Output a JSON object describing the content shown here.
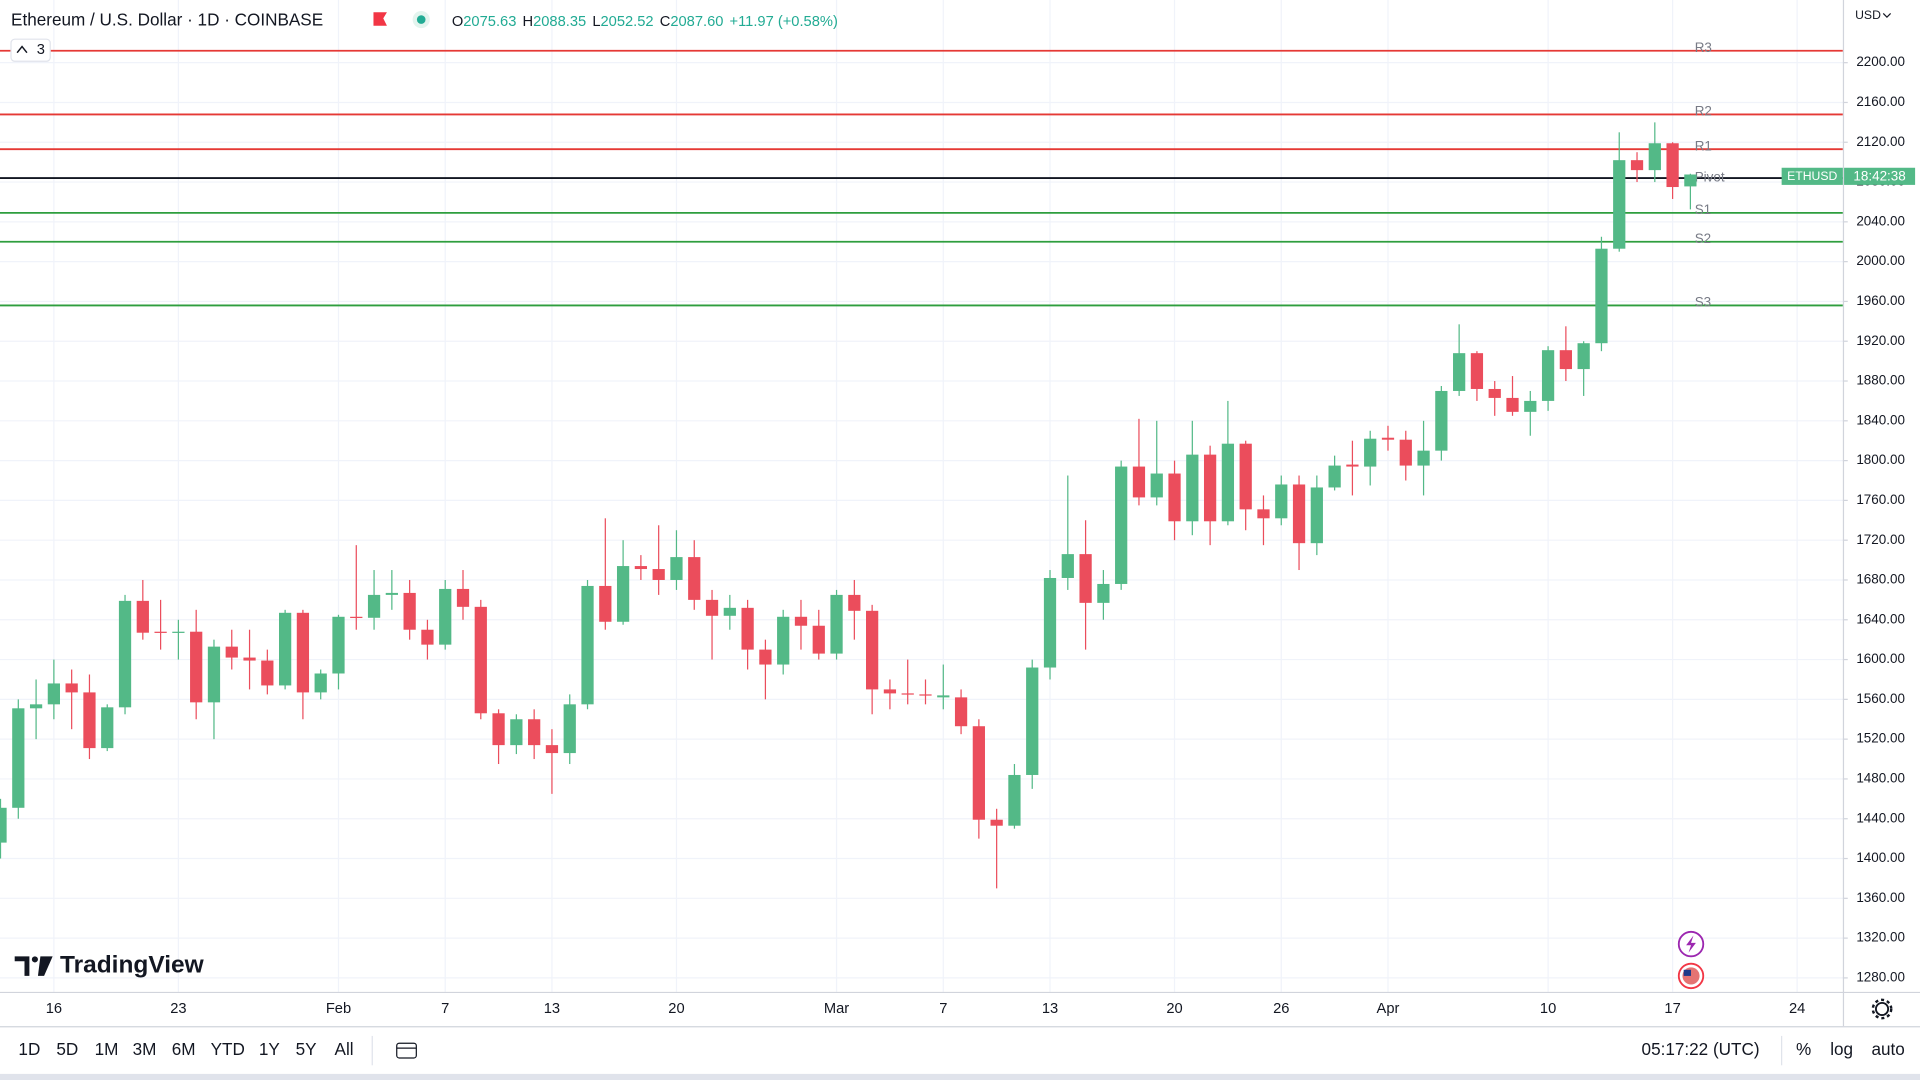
{
  "header": {
    "symbol": "Ethereum / U.S. Dollar · 1D · COINBASE",
    "ohlc": [
      {
        "label": "O",
        "value": "2075.63"
      },
      {
        "label": "H",
        "value": "2088.35"
      },
      {
        "label": "L",
        "value": "2052.52"
      },
      {
        "label": "C",
        "value": "2087.60"
      }
    ],
    "change": "+11.97 (+0.58%)",
    "indicators": "3"
  },
  "chart_data": {
    "type": "candlestick",
    "categories": [
      null,
      null,
      null,
      "16",
      null,
      null,
      null,
      null,
      null,
      null,
      "23",
      null,
      null,
      null,
      null,
      null,
      null,
      null,
      null,
      "Feb",
      null,
      null,
      null,
      null,
      null,
      "7",
      null,
      null,
      null,
      null,
      null,
      "13",
      null,
      null,
      null,
      null,
      null,
      null,
      "20",
      null,
      null,
      null,
      null,
      null,
      null,
      null,
      null,
      "Mar",
      null,
      null,
      null,
      null,
      null,
      "7",
      null,
      null,
      null,
      null,
      null,
      "13",
      null,
      null,
      null,
      null,
      null,
      null,
      "20",
      null,
      null,
      null,
      null,
      null,
      "26",
      null,
      null,
      null,
      null,
      null,
      "Apr",
      null,
      null,
      null,
      null,
      null,
      null,
      null,
      null,
      "10",
      null,
      null,
      null,
      null,
      null,
      null,
      "17",
      null,
      null,
      null,
      null,
      null,
      null,
      "24"
    ],
    "open": [
      1416,
      1451,
      1551,
      1555,
      1576,
      1567,
      1511,
      1552,
      1659,
      1628,
      1627,
      1628,
      1557,
      1613,
      1602,
      1599,
      1574,
      1647,
      1567,
      1586,
      1643,
      1642,
      1665,
      1667,
      1630,
      1615,
      1671,
      1653,
      1546,
      1514,
      1540,
      1514,
      1506,
      1555,
      1674,
      1638,
      1694,
      1691,
      1680,
      1703,
      1660,
      1644,
      1652,
      1610,
      1595,
      1643,
      1634,
      1606,
      1665,
      1649,
      1570,
      1566,
      1565,
      1562,
      1562,
      1533,
      1439,
      1433,
      1484,
      1592,
      1682,
      1706,
      1657,
      1676,
      1794,
      1763,
      1787,
      1739,
      1806,
      1739,
      1817,
      1751,
      1742,
      1776,
      1717,
      1773,
      1796,
      1794,
      1823,
      1821,
      1795,
      1810,
      1870,
      1908,
      1872,
      1863,
      1849,
      1860,
      1911,
      1892,
      1918,
      2013,
      2102,
      2092,
      2119,
      2075.63,
      null,
      null,
      null,
      null,
      null,
      null
    ],
    "high": [
      1460,
      1560,
      1580,
      1600,
      1590,
      1585,
      1555,
      1665,
      1680,
      1660,
      1640,
      1650,
      1620,
      1630,
      1630,
      1610,
      1650,
      1650,
      1590,
      1645,
      1715,
      1690,
      1690,
      1680,
      1640,
      1680,
      1690,
      1660,
      1550,
      1545,
      1550,
      1530,
      1565,
      1680,
      1742,
      1720,
      1705,
      1735,
      1730,
      1720,
      1670,
      1665,
      1660,
      1620,
      1650,
      1660,
      1650,
      1670,
      1680,
      1655,
      1580,
      1600,
      1580,
      1595,
      1570,
      1540,
      1450,
      1495,
      1600,
      1690,
      1785,
      1740,
      1690,
      1800,
      1842,
      1840,
      1800,
      1840,
      1815,
      1860,
      1820,
      1765,
      1785,
      1785,
      1785,
      1805,
      1820,
      1830,
      1835,
      1830,
      1840,
      1875,
      1937,
      1910,
      1880,
      1885,
      1870,
      1915,
      1935,
      1920,
      2025,
      2130,
      2110,
      2140,
      2120,
      2088.35,
      null,
      null,
      null,
      null,
      null,
      null
    ],
    "low": [
      1400,
      1440,
      1520,
      1540,
      1530,
      1500,
      1508,
      1545,
      1620,
      1610,
      1600,
      1540,
      1520,
      1590,
      1570,
      1565,
      1570,
      1540,
      1560,
      1570,
      1630,
      1630,
      1650,
      1620,
      1600,
      1610,
      1640,
      1540,
      1495,
      1505,
      1500,
      1465,
      1495,
      1550,
      1630,
      1635,
      1680,
      1665,
      1670,
      1650,
      1600,
      1630,
      1590,
      1560,
      1585,
      1610,
      1600,
      1600,
      1620,
      1545,
      1550,
      1555,
      1555,
      1550,
      1525,
      1420,
      1370,
      1430,
      1470,
      1580,
      1670,
      1610,
      1640,
      1670,
      1755,
      1755,
      1720,
      1725,
      1715,
      1735,
      1730,
      1715,
      1735,
      1690,
      1705,
      1770,
      1765,
      1775,
      1810,
      1780,
      1765,
      1800,
      1865,
      1860,
      1845,
      1845,
      1825,
      1850,
      1880,
      1865,
      1910,
      2010,
      2080,
      2080,
      2063,
      2052.52,
      null,
      null,
      null,
      null,
      null,
      null
    ],
    "close": [
      1451,
      1551,
      1555,
      1576,
      1567,
      1511,
      1552,
      1659,
      1627,
      1627,
      1628,
      1557,
      1613,
      1602,
      1599,
      1574,
      1647,
      1567,
      1586,
      1643,
      1642,
      1665,
      1667,
      1630,
      1615,
      1671,
      1653,
      1546,
      1514,
      1540,
      1514,
      1506,
      1555,
      1674,
      1638,
      1694,
      1691,
      1680,
      1703,
      1660,
      1644,
      1652,
      1610,
      1595,
      1643,
      1634,
      1606,
      1665,
      1649,
      1570,
      1566,
      1565,
      1564,
      1564,
      1533,
      1439,
      1433,
      1484,
      1592,
      1682,
      1706,
      1657,
      1676,
      1794,
      1763,
      1787,
      1739,
      1806,
      1739,
      1817,
      1751,
      1742,
      1776,
      1717,
      1773,
      1795,
      1794,
      1822,
      1821,
      1795,
      1810,
      1870,
      1908,
      1872,
      1863,
      1849,
      1860,
      1911,
      1892,
      1918,
      2013,
      2102,
      2092,
      2119,
      2075,
      2087.6,
      null,
      null,
      null,
      null,
      null,
      null
    ],
    "up_color": "#53b987",
    "down_color": "#eb4d5c",
    "ylim": [
      1266,
      2263
    ],
    "yticks": [
      {
        "value": 1280,
        "label": "1280.00"
      },
      {
        "value": 1320,
        "label": "1320.00"
      },
      {
        "value": 1360,
        "label": "1360.00"
      },
      {
        "value": 1400,
        "label": "1400.00"
      },
      {
        "value": 1440,
        "label": "1440.00"
      },
      {
        "value": 1480,
        "label": "1480.00"
      },
      {
        "value": 1520,
        "label": "1520.00"
      },
      {
        "value": 1560,
        "label": "1560.00"
      },
      {
        "value": 1600,
        "label": "1600.00"
      },
      {
        "value": 1640,
        "label": "1640.00"
      },
      {
        "value": 1680,
        "label": "1680.00"
      },
      {
        "value": 1720,
        "label": "1720.00"
      },
      {
        "value": 1760,
        "label": "1760.00"
      },
      {
        "value": 1800,
        "label": "1800.00"
      },
      {
        "value": 1840,
        "label": "1840.00"
      },
      {
        "value": 1880,
        "label": "1880.00"
      },
      {
        "value": 1920,
        "label": "1920.00"
      },
      {
        "value": 1960,
        "label": "1960.00"
      },
      {
        "value": 2000,
        "label": "2000.00"
      },
      {
        "value": 2040,
        "label": "2040.00"
      },
      {
        "value": 2080,
        "label": "2080.00"
      },
      {
        "value": 2120,
        "label": "2120.00"
      },
      {
        "value": 2160,
        "label": "2160.00"
      },
      {
        "value": 2200,
        "label": "2200.00"
      }
    ],
    "grid": true,
    "pivots": [
      {
        "label": "R3",
        "value": 2212,
        "color": "#e53935"
      },
      {
        "label": "R2",
        "value": 2148,
        "color": "#e53935"
      },
      {
        "label": "R1",
        "value": 2113,
        "color": "#e53935"
      },
      {
        "label": "Pivot",
        "value": 2084,
        "color": "#131722"
      },
      {
        "label": "S1",
        "value": 2049,
        "color": "#2e9e3e"
      },
      {
        "label": "S2",
        "value": 2020,
        "color": "#2e9e3e"
      },
      {
        "label": "S3",
        "value": 1956,
        "color": "#2e9e3e"
      }
    ],
    "price_tag": {
      "symbol": "ETHUSD",
      "countdown": "18:42:38"
    },
    "currency": "USD"
  },
  "brand": "TradingView",
  "toolbar": {
    "ranges": [
      "1D",
      "5D",
      "1M",
      "3M",
      "6M",
      "YTD",
      "1Y",
      "5Y",
      "All"
    ],
    "clock": "05:17:22 (UTC)",
    "options": [
      "%",
      "log",
      "auto"
    ]
  }
}
